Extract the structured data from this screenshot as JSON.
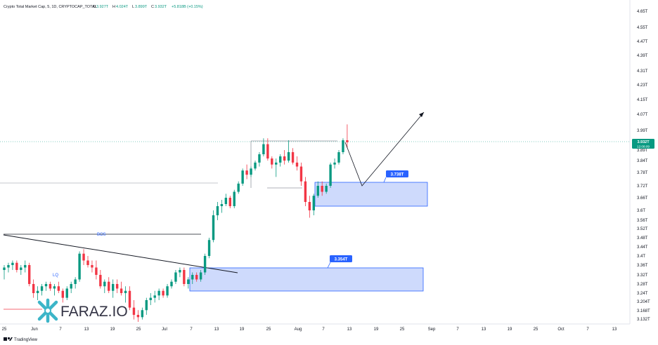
{
  "header": {
    "title": "Crypto Total Market Cap, 5, 1D, CRYPTOCAP_TOTAL",
    "open_label": "O",
    "open": "3.927T",
    "high_label": "H",
    "high": "4.024T",
    "low_label": "L",
    "low": "3.899T",
    "close_label": "C",
    "close": "3.932T",
    "change": "+5.818B (+0.15%)"
  },
  "price_tag": {
    "value": "3.932T",
    "countdown": "12:08:09"
  },
  "annotations": {
    "bos": "BOS",
    "lq": "LQ",
    "zone_upper_label": "3.738T",
    "zone_lower_label": "3.354T"
  },
  "watermark": {
    "text": "FARAZ.IO"
  },
  "footer": {
    "brand": "TradingView"
  },
  "colors": {
    "up": "#089981",
    "down": "#f23645",
    "zone_fill": "#c6d4fb",
    "zone_stroke": "#2962ff",
    "label_bg": "#2962ff",
    "logo_accent": "#3cb5c8"
  },
  "chart_data": {
    "type": "candlestick",
    "title": "Crypto Total Market Cap, 5, 1D, CRYPTOCAP_TOTAL",
    "y_unit": "T",
    "y_ticks": [
      "4.65T",
      "4.55T",
      "4.47T",
      "4.39T",
      "4.31T",
      "4.23T",
      "4.15T",
      "4.07T",
      "3.99T",
      "3.89T",
      "3.84T",
      "3.78T",
      "3.72T",
      "3.66T",
      "3.6T",
      "3.56T",
      "3.52T",
      "3.48T",
      "3.44T",
      "3.4T",
      "3.36T",
      "3.32T",
      "3.28T",
      "3.24T",
      "3.204T",
      "3.168T",
      "3.132T"
    ],
    "x_ticks": [
      "25",
      "Jun",
      "7",
      "13",
      "19",
      "25",
      "Jul",
      "7",
      "13",
      "19",
      "25",
      "Aug",
      "7",
      "13",
      "19",
      "25",
      "Sep",
      "7",
      "13",
      "19",
      "25",
      "Oct",
      "7",
      "13"
    ],
    "candles": [
      {
        "o": 3.34,
        "h": 3.36,
        "l": 3.3,
        "c": 3.35
      },
      {
        "o": 3.35,
        "h": 3.37,
        "l": 3.33,
        "c": 3.36
      },
      {
        "o": 3.36,
        "h": 3.38,
        "l": 3.34,
        "c": 3.37
      },
      {
        "o": 3.37,
        "h": 3.38,
        "l": 3.33,
        "c": 3.34
      },
      {
        "o": 3.34,
        "h": 3.36,
        "l": 3.32,
        "c": 3.35
      },
      {
        "o": 3.35,
        "h": 3.38,
        "l": 3.33,
        "c": 3.36
      },
      {
        "o": 3.36,
        "h": 3.37,
        "l": 3.27,
        "c": 3.28
      },
      {
        "o": 3.28,
        "h": 3.3,
        "l": 3.22,
        "c": 3.24
      },
      {
        "o": 3.24,
        "h": 3.27,
        "l": 3.21,
        "c": 3.25
      },
      {
        "o": 3.25,
        "h": 3.28,
        "l": 3.23,
        "c": 3.27
      },
      {
        "o": 3.27,
        "h": 3.29,
        "l": 3.25,
        "c": 3.28
      },
      {
        "o": 3.28,
        "h": 3.29,
        "l": 3.25,
        "c": 3.26
      },
      {
        "o": 3.26,
        "h": 3.28,
        "l": 3.23,
        "c": 3.27
      },
      {
        "o": 3.27,
        "h": 3.29,
        "l": 3.24,
        "c": 3.25
      },
      {
        "o": 3.25,
        "h": 3.26,
        "l": 3.2,
        "c": 3.22
      },
      {
        "o": 3.22,
        "h": 3.27,
        "l": 3.21,
        "c": 3.26
      },
      {
        "o": 3.26,
        "h": 3.29,
        "l": 3.24,
        "c": 3.28
      },
      {
        "o": 3.28,
        "h": 3.31,
        "l": 3.26,
        "c": 3.3
      },
      {
        "o": 3.3,
        "h": 3.42,
        "l": 3.29,
        "c": 3.41
      },
      {
        "o": 3.41,
        "h": 3.43,
        "l": 3.36,
        "c": 3.38
      },
      {
        "o": 3.38,
        "h": 3.4,
        "l": 3.35,
        "c": 3.36
      },
      {
        "o": 3.36,
        "h": 3.38,
        "l": 3.33,
        "c": 3.35
      },
      {
        "o": 3.35,
        "h": 3.38,
        "l": 3.3,
        "c": 3.32
      },
      {
        "o": 3.32,
        "h": 3.34,
        "l": 3.26,
        "c": 3.27
      },
      {
        "o": 3.27,
        "h": 3.3,
        "l": 3.24,
        "c": 3.29
      },
      {
        "o": 3.29,
        "h": 3.31,
        "l": 3.24,
        "c": 3.25
      },
      {
        "o": 3.25,
        "h": 3.3,
        "l": 3.22,
        "c": 3.28
      },
      {
        "o": 3.28,
        "h": 3.3,
        "l": 3.24,
        "c": 3.26
      },
      {
        "o": 3.26,
        "h": 3.29,
        "l": 3.23,
        "c": 3.24
      },
      {
        "o": 3.24,
        "h": 3.27,
        "l": 3.2,
        "c": 3.25
      },
      {
        "o": 3.25,
        "h": 3.27,
        "l": 3.17,
        "c": 3.18
      },
      {
        "o": 3.18,
        "h": 3.21,
        "l": 3.13,
        "c": 3.15
      },
      {
        "o": 3.15,
        "h": 3.17,
        "l": 3.12,
        "c": 3.14
      },
      {
        "o": 3.14,
        "h": 3.18,
        "l": 3.13,
        "c": 3.17
      },
      {
        "o": 3.17,
        "h": 3.22,
        "l": 3.15,
        "c": 3.21
      },
      {
        "o": 3.21,
        "h": 3.24,
        "l": 3.19,
        "c": 3.22
      },
      {
        "o": 3.22,
        "h": 3.25,
        "l": 3.2,
        "c": 3.23
      },
      {
        "o": 3.23,
        "h": 3.26,
        "l": 3.21,
        "c": 3.25
      },
      {
        "o": 3.25,
        "h": 3.26,
        "l": 3.22,
        "c": 3.23
      },
      {
        "o": 3.23,
        "h": 3.28,
        "l": 3.22,
        "c": 3.27
      },
      {
        "o": 3.27,
        "h": 3.3,
        "l": 3.26,
        "c": 3.29
      },
      {
        "o": 3.29,
        "h": 3.34,
        "l": 3.28,
        "c": 3.33
      },
      {
        "o": 3.33,
        "h": 3.35,
        "l": 3.31,
        "c": 3.34
      },
      {
        "o": 3.34,
        "h": 3.35,
        "l": 3.27,
        "c": 3.28
      },
      {
        "o": 3.28,
        "h": 3.31,
        "l": 3.26,
        "c": 3.3
      },
      {
        "o": 3.3,
        "h": 3.33,
        "l": 3.28,
        "c": 3.32
      },
      {
        "o": 3.32,
        "h": 3.33,
        "l": 3.29,
        "c": 3.3
      },
      {
        "o": 3.3,
        "h": 3.34,
        "l": 3.29,
        "c": 3.33
      },
      {
        "o": 3.33,
        "h": 3.41,
        "l": 3.32,
        "c": 3.4
      },
      {
        "o": 3.4,
        "h": 3.48,
        "l": 3.39,
        "c": 3.47
      },
      {
        "o": 3.47,
        "h": 3.6,
        "l": 3.46,
        "c": 3.58
      },
      {
        "o": 3.58,
        "h": 3.64,
        "l": 3.56,
        "c": 3.62
      },
      {
        "o": 3.62,
        "h": 3.65,
        "l": 3.59,
        "c": 3.63
      },
      {
        "o": 3.63,
        "h": 3.68,
        "l": 3.62,
        "c": 3.66
      },
      {
        "o": 3.66,
        "h": 3.67,
        "l": 3.61,
        "c": 3.62
      },
      {
        "o": 3.62,
        "h": 3.7,
        "l": 3.61,
        "c": 3.69
      },
      {
        "o": 3.69,
        "h": 3.74,
        "l": 3.68,
        "c": 3.73
      },
      {
        "o": 3.73,
        "h": 3.8,
        "l": 3.72,
        "c": 3.79
      },
      {
        "o": 3.79,
        "h": 3.82,
        "l": 3.75,
        "c": 3.77
      },
      {
        "o": 3.77,
        "h": 3.81,
        "l": 3.76,
        "c": 3.8
      },
      {
        "o": 3.8,
        "h": 3.84,
        "l": 3.79,
        "c": 3.83
      },
      {
        "o": 3.83,
        "h": 3.88,
        "l": 3.81,
        "c": 3.87
      },
      {
        "o": 3.87,
        "h": 3.95,
        "l": 3.86,
        "c": 3.92
      },
      {
        "o": 3.92,
        "h": 3.95,
        "l": 3.84,
        "c": 3.85
      },
      {
        "o": 3.85,
        "h": 3.86,
        "l": 3.8,
        "c": 3.82
      },
      {
        "o": 3.82,
        "h": 3.85,
        "l": 3.76,
        "c": 3.83
      },
      {
        "o": 3.83,
        "h": 3.87,
        "l": 3.81,
        "c": 3.86
      },
      {
        "o": 3.86,
        "h": 3.89,
        "l": 3.82,
        "c": 3.84
      },
      {
        "o": 3.84,
        "h": 3.94,
        "l": 3.83,
        "c": 3.88
      },
      {
        "o": 3.88,
        "h": 3.9,
        "l": 3.82,
        "c": 3.83
      },
      {
        "o": 3.83,
        "h": 3.86,
        "l": 3.79,
        "c": 3.81
      },
      {
        "o": 3.81,
        "h": 3.83,
        "l": 3.72,
        "c": 3.74
      },
      {
        "o": 3.74,
        "h": 3.76,
        "l": 3.62,
        "c": 3.64
      },
      {
        "o": 3.64,
        "h": 3.67,
        "l": 3.57,
        "c": 3.6
      },
      {
        "o": 3.6,
        "h": 3.68,
        "l": 3.58,
        "c": 3.67
      },
      {
        "o": 3.67,
        "h": 3.74,
        "l": 3.66,
        "c": 3.72
      },
      {
        "o": 3.72,
        "h": 3.74,
        "l": 3.67,
        "c": 3.69
      },
      {
        "o": 3.69,
        "h": 3.73,
        "l": 3.68,
        "c": 3.72
      },
      {
        "o": 3.72,
        "h": 3.83,
        "l": 3.71,
        "c": 3.82
      },
      {
        "o": 3.82,
        "h": 3.85,
        "l": 3.8,
        "c": 3.83
      },
      {
        "o": 3.83,
        "h": 3.89,
        "l": 3.82,
        "c": 3.88
      },
      {
        "o": 3.88,
        "h": 3.95,
        "l": 3.87,
        "c": 3.94
      },
      {
        "o": 3.94,
        "h": 4.02,
        "l": 3.9,
        "c": 3.93
      }
    ],
    "price_line": 3.932,
    "zones": [
      {
        "label": "3.738T",
        "top": 3.73,
        "bottom": 3.66
      },
      {
        "label": "3.354T",
        "top": 3.36,
        "bottom": 3.26
      }
    ],
    "bos_level": 3.51,
    "projection": [
      3.93,
      3.72,
      4.1
    ]
  }
}
